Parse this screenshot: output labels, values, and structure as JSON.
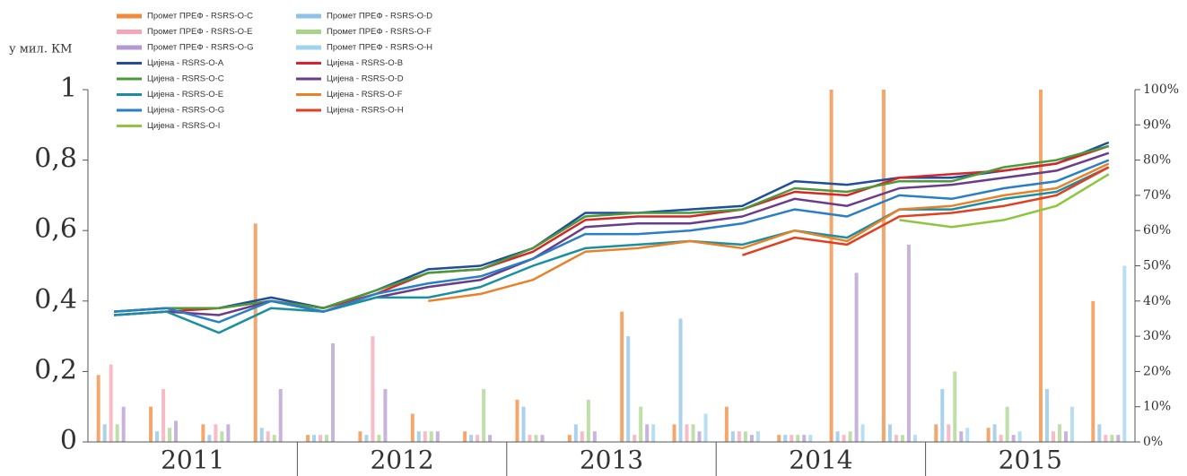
{
  "chart_data": {
    "type": "combo",
    "ylabel": "у мил. КМ",
    "categories": [
      null,
      null,
      "2011",
      null,
      null,
      null,
      "2012",
      null,
      null,
      null,
      "2013",
      null,
      null,
      null,
      "2014",
      null,
      null,
      null,
      "2015",
      null
    ],
    "ylim": [
      0,
      1
    ],
    "yticks": [
      0,
      {
        "value": 0.2,
        "label": "0,2"
      },
      {
        "value": 0.4,
        "label": "0,4"
      },
      {
        "value": 0.6,
        "label": "0,6"
      },
      {
        "value": 0.8,
        "label": "0,8"
      },
      1
    ],
    "y2lim": [
      0,
      100
    ],
    "y2ticks": [
      {
        "value": 0,
        "label": "0%"
      },
      {
        "value": 10,
        "label": "10%"
      },
      {
        "value": 20,
        "label": "20%"
      },
      {
        "value": 30,
        "label": "30%"
      },
      {
        "value": 40,
        "label": "40%"
      },
      {
        "value": 50,
        "label": "50%"
      },
      {
        "value": 60,
        "label": "60%"
      },
      {
        "value": 70,
        "label": "70%"
      },
      {
        "value": 80,
        "label": "80%"
      },
      {
        "value": 90,
        "label": "90%"
      },
      {
        "value": 100,
        "label": "100%"
      }
    ],
    "series": [
      {
        "name": "Промет ПРЕФ - RSRS-O-C",
        "type": "bar",
        "color": "#f08a3c",
        "values": [
          0.19,
          0.1,
          0.05,
          0.62,
          0.02,
          0.03,
          0.08,
          0.03,
          0.12,
          0.02,
          0.37,
          0.05,
          0.1,
          0.02,
          1,
          1,
          0.05,
          0.04,
          1,
          0.4
        ]
      },
      {
        "name": "Промет ПРЕФ - RSRS-O-D",
        "type": "bar",
        "color": "#8ec3e6",
        "values": [
          0.05,
          0.03,
          0.02,
          0.04,
          0.02,
          0.02,
          0.03,
          0.02,
          0.1,
          0.05,
          0.3,
          0.35,
          0.03,
          0.02,
          0.03,
          0.05,
          0.15,
          0.05,
          0.15,
          0.05
        ]
      },
      {
        "name": "Промет ПРЕФ - RSRS-O-E",
        "type": "bar",
        "color": "#f4a6b4",
        "values": [
          0.22,
          0.15,
          0.05,
          0.03,
          0.02,
          0.3,
          0.03,
          0.02,
          0.02,
          0.03,
          0.02,
          0.05,
          0.03,
          0.02,
          0.02,
          0.02,
          0.05,
          0.02,
          0.03,
          0.02
        ]
      },
      {
        "name": "Промет ПРЕФ - RSRS-O-F",
        "type": "bar",
        "color": "#a8d48a",
        "values": [
          0.05,
          0.04,
          0.03,
          0.02,
          0.02,
          0.02,
          0.03,
          0.15,
          0.02,
          0.12,
          0.1,
          0.05,
          0.03,
          0.02,
          0.03,
          0.02,
          0.2,
          0.1,
          0.05,
          0.02
        ]
      },
      {
        "name": "Промет ПРЕФ - RSRS-O-G",
        "type": "bar",
        "color": "#b49ad0",
        "values": [
          0.1,
          0.06,
          0.05,
          0.15,
          0.28,
          0.15,
          0.03,
          0.02,
          0.02,
          0.03,
          0.05,
          0.03,
          0.02,
          0.02,
          0.48,
          0.56,
          0.03,
          0.02,
          0.03,
          0.02
        ]
      },
      {
        "name": "Промет ПРЕФ - RSRS-O-H",
        "type": "bar",
        "color": "#9fd4ec",
        "values": [
          0,
          0,
          0,
          0,
          0,
          0,
          0,
          0,
          0,
          0,
          0.05,
          0.08,
          0.03,
          0.02,
          0.05,
          0.02,
          0.04,
          0.03,
          0.1,
          0.5
        ]
      },
      {
        "name": "Цијена - RSRS-O-A",
        "type": "line",
        "axis": "y2",
        "color": "#1f4e9c",
        "values": [
          37,
          38,
          38,
          41,
          38,
          43,
          49,
          50,
          55,
          65,
          65,
          66,
          67,
          74,
          73,
          75,
          75,
          77,
          79,
          85
        ]
      },
      {
        "name": "Цијена - RSRS-O-B",
        "type": "line",
        "axis": "y2",
        "color": "#d7262b",
        "values": [
          36,
          37,
          38,
          40,
          38,
          42,
          48,
          49,
          54,
          63,
          64,
          64,
          66,
          71,
          70,
          75,
          76,
          77,
          79,
          84
        ]
      },
      {
        "name": "Цијена - RSRS-O-C",
        "type": "line",
        "axis": "y2",
        "color": "#4a9a3a",
        "values": [
          37,
          38,
          38,
          40,
          38,
          43,
          48,
          49,
          55,
          64,
          65,
          65,
          66,
          72,
          71,
          74,
          74,
          78,
          80,
          84
        ]
      },
      {
        "name": "Цијена - RSRS-O-D",
        "type": "line",
        "axis": "y2",
        "color": "#6a3d8a",
        "values": [
          36,
          37,
          36,
          40,
          37,
          41,
          44,
          46,
          52,
          61,
          62,
          62,
          64,
          69,
          67,
          72,
          73,
          75,
          77,
          82
        ]
      },
      {
        "name": "Цијена - RSRS-O-E",
        "type": "line",
        "axis": "y2",
        "color": "#1a8fa0",
        "values": [
          36,
          37,
          31,
          38,
          37,
          41,
          41,
          44,
          50,
          55,
          56,
          57,
          56,
          60,
          58,
          66,
          66,
          69,
          71,
          78
        ]
      },
      {
        "name": "Цијена - RSRS-O-F",
        "type": "line",
        "axis": "y2",
        "color": "#e8822a",
        "values": [
          null,
          null,
          null,
          null,
          null,
          null,
          40,
          42,
          46,
          54,
          55,
          57,
          55,
          60,
          57,
          66,
          67,
          70,
          72,
          79
        ]
      },
      {
        "name": "Цијена - RSRS-O-G",
        "type": "line",
        "axis": "y2",
        "color": "#2a7fc4",
        "values": [
          37,
          38,
          34,
          40,
          37,
          42,
          45,
          47,
          52,
          59,
          59,
          60,
          62,
          66,
          64,
          70,
          69,
          72,
          74,
          80
        ]
      },
      {
        "name": "Цијена - RSRS-O-H",
        "type": "line",
        "axis": "y2",
        "color": "#e04020",
        "values": [
          null,
          null,
          null,
          null,
          null,
          null,
          null,
          null,
          null,
          null,
          null,
          null,
          53,
          58,
          56,
          64,
          65,
          67,
          70,
          78
        ]
      },
      {
        "name": "Цијена - RSRS-O-I",
        "type": "line",
        "axis": "y2",
        "color": "#8cc63f",
        "values": [
          null,
          null,
          null,
          null,
          null,
          null,
          null,
          null,
          null,
          null,
          null,
          null,
          null,
          null,
          null,
          63,
          61,
          63,
          67,
          76
        ]
      }
    ]
  }
}
